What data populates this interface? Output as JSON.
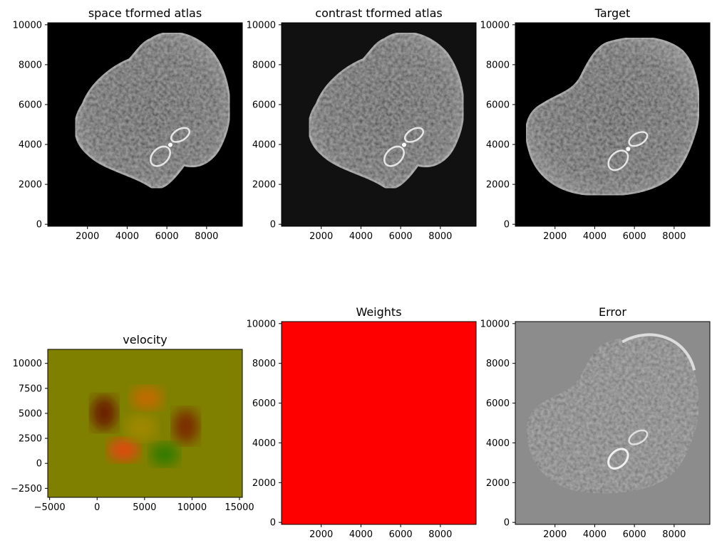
{
  "chart_data": [
    {
      "type": "image",
      "title": "space tformed atlas",
      "image": "brain-slice-grayscale",
      "background_color": "#000000",
      "xlim": [
        0,
        9800
      ],
      "ylim": [
        10100,
        -100
      ],
      "xticks": [
        2000,
        4000,
        6000,
        8000
      ],
      "xtick_labels": [
        "2000",
        "4000",
        "6000",
        "8000"
      ],
      "yticks": [
        0,
        2000,
        4000,
        6000,
        8000,
        10000
      ],
      "ytick_labels": [
        "0",
        "2000",
        "4000",
        "6000",
        "8000",
        "10000"
      ]
    },
    {
      "type": "image",
      "title": "contrast tformed atlas",
      "image": "brain-slice-grayscale",
      "background_color": "#111111",
      "xlim": [
        0,
        9800
      ],
      "ylim": [
        10100,
        -100
      ],
      "xticks": [
        2000,
        4000,
        6000,
        8000
      ],
      "xtick_labels": [
        "2000",
        "4000",
        "6000",
        "8000"
      ],
      "yticks": [
        0,
        2000,
        4000,
        6000,
        8000,
        10000
      ],
      "ytick_labels": [
        "0",
        "2000",
        "4000",
        "6000",
        "8000",
        "10000"
      ]
    },
    {
      "type": "image",
      "title": "Target",
      "image": "brain-slice-grayscale",
      "background_color": "#000000",
      "xlim": [
        0,
        9800
      ],
      "ylim": [
        10100,
        -100
      ],
      "xticks": [
        2000,
        4000,
        6000,
        8000
      ],
      "xtick_labels": [
        "2000",
        "4000",
        "6000",
        "8000"
      ],
      "yticks": [
        0,
        2000,
        4000,
        6000,
        8000,
        10000
      ],
      "ytick_labels": [
        "0",
        "2000",
        "4000",
        "6000",
        "8000",
        "10000"
      ]
    },
    {
      "type": "image",
      "title": "velocity",
      "image": "velocity-field-rgb",
      "background_color": "#808000",
      "xlim": [
        -5200,
        15300
      ],
      "ylim": [
        11400,
        -3400
      ],
      "xticks": [
        -5000,
        0,
        5000,
        10000,
        15000
      ],
      "xtick_labels": [
        "−5000",
        "0",
        "5000",
        "10000",
        "15000"
      ],
      "yticks": [
        -2500,
        0,
        2500,
        5000,
        7500,
        10000
      ],
      "ytick_labels": [
        "−2500",
        "0",
        "2500",
        "5000",
        "7500",
        "10000"
      ]
    },
    {
      "type": "image",
      "title": "Weights",
      "image": "uniform-red",
      "background_color": "#ff0000",
      "xlim": [
        0,
        9800
      ],
      "ylim": [
        10100,
        -100
      ],
      "xticks": [
        2000,
        4000,
        6000,
        8000
      ],
      "xtick_labels": [
        "2000",
        "4000",
        "6000",
        "8000"
      ],
      "yticks": [
        0,
        2000,
        4000,
        6000,
        8000,
        10000
      ],
      "ytick_labels": [
        "0",
        "2000",
        "4000",
        "6000",
        "8000",
        "10000"
      ]
    },
    {
      "type": "image",
      "title": "Error",
      "image": "error-map-gray",
      "background_color": "#8c8c8c",
      "xlim": [
        0,
        9800
      ],
      "ylim": [
        10100,
        -100
      ],
      "xticks": [
        2000,
        4000,
        6000,
        8000
      ],
      "xtick_labels": [
        "2000",
        "4000",
        "6000",
        "8000"
      ],
      "yticks": [
        0,
        2000,
        4000,
        6000,
        8000,
        10000
      ],
      "ytick_labels": [
        "0",
        "2000",
        "4000",
        "6000",
        "8000",
        "10000"
      ]
    }
  ]
}
